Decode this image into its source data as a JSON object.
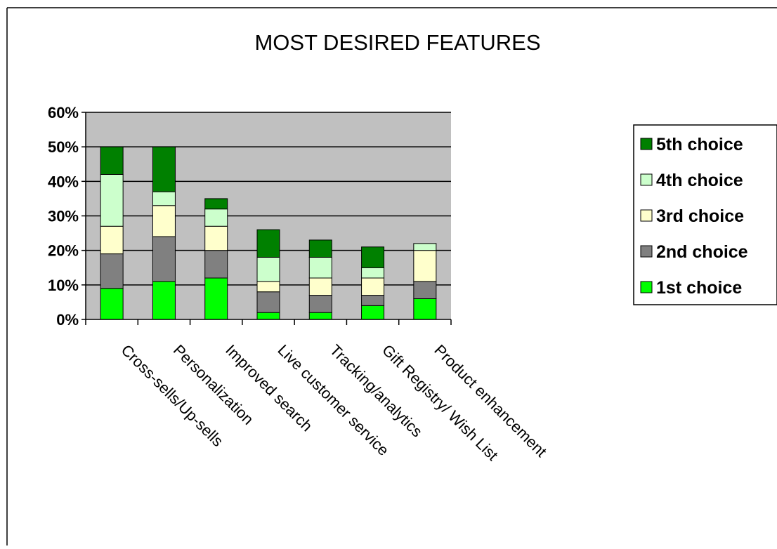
{
  "chart_data": {
    "type": "bar",
    "stacked": true,
    "title": "MOST DESIRED FEATURES",
    "xlabel": "",
    "ylabel": "",
    "categories": [
      "Cross-sells/Up-sells",
      "Personalization",
      "Improved search",
      "Live customer service",
      "Tracking/analytics",
      "Gift Registry/ Wish List",
      "Product enhancement"
    ],
    "series": [
      {
        "name": "1st choice",
        "color": "#00ff00",
        "values": [
          9,
          11,
          12,
          2,
          2,
          4,
          6
        ]
      },
      {
        "name": "2nd choice",
        "color": "#808080",
        "values": [
          10,
          13,
          8,
          6,
          5,
          3,
          5
        ]
      },
      {
        "name": "3rd choice",
        "color": "#ffffcc",
        "values": [
          8,
          9,
          7,
          3,
          5,
          5,
          9
        ]
      },
      {
        "name": "4th choice",
        "color": "#ccffcc",
        "values": [
          15,
          4,
          5,
          7,
          6,
          3,
          2
        ]
      },
      {
        "name": "5th choice",
        "color": "#008000",
        "values": [
          8,
          13,
          3,
          8,
          5,
          6,
          0
        ]
      }
    ],
    "ylim": [
      0,
      60
    ],
    "yticks": [
      0,
      10,
      20,
      30,
      40,
      50,
      60
    ],
    "ytick_labels": [
      "0%",
      "10%",
      "20%",
      "30%",
      "40%",
      "50%",
      "60%"
    ],
    "grid": true,
    "plot_background": "#c0c0c0",
    "legend_position": "right",
    "legend_order": [
      "5th choice",
      "4th choice",
      "3rd choice",
      "2nd choice",
      "1st choice"
    ]
  }
}
